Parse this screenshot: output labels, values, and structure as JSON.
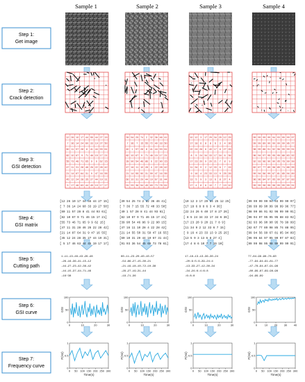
{
  "samples": [
    "Sample 1",
    "Sample 2",
    "Sample 3",
    "Sample 4"
  ],
  "steps": [
    {
      "title": "Step 1:",
      "sub": "Get image"
    },
    {
      "title": "Step 2:",
      "sub": "Crack detection"
    },
    {
      "title": "Step 3:",
      "sub": "GSI detection"
    },
    {
      "title": "Step 4:",
      "sub": "GSI matrix"
    },
    {
      "title": "Step 5:",
      "sub": "Cutting path"
    },
    {
      "title": "Step 6:",
      "sub": "GSI curve"
    },
    {
      "title": "Step 7:",
      "sub": "Frequency curve"
    }
  ],
  "colors": {
    "step_border": "#3a8fd0",
    "arrow_fill": "#b9dcf3",
    "arrow_stroke": "#6aaedf",
    "grid": "#e34b4b",
    "curve": "#2aa9e0",
    "rock_dark": "#3b3b3b",
    "rock_light": "#9a9a9a"
  },
  "gsi_grids": [
    [
      [
        "12",
        "26",
        "10",
        "17",
        "44",
        "55",
        "44",
        "27",
        "15"
      ],
      [
        "7",
        "36",
        "14",
        "24",
        "60",
        "33",
        "19",
        "27",
        "50"
      ],
      [
        "60",
        "11",
        "57",
        "28",
        "8",
        "41",
        "44",
        "93",
        "61"
      ],
      [
        "82",
        "10",
        "67",
        "9",
        "71",
        "46",
        "15",
        "17",
        "21"
      ],
      [
        "55",
        "73",
        "46",
        "71",
        "65",
        "9",
        "9",
        "62",
        "15"
      ],
      [
        "47",
        "11",
        "31",
        "28",
        "46",
        "26",
        "22",
        "28",
        "42"
      ],
      [
        "21",
        "14",
        "87",
        "64",
        "31",
        "9",
        "47",
        "16",
        "55"
      ],
      [
        "45",
        "12",
        "24",
        "28",
        "35",
        "27",
        "44",
        "19",
        "31"
      ],
      [
        "5",
        "17",
        "46",
        "63",
        "44",
        "45",
        "19",
        "17",
        "17"
      ]
    ],
    [
      [
        "39",
        "54",
        "25",
        "74",
        "2",
        "32",
        "36",
        "46",
        "41"
      ],
      [
        "7",
        "36",
        "7",
        "15",
        "55",
        "72",
        "40",
        "33",
        "50"
      ],
      [
        "40",
        "1",
        "57",
        "28",
        "8",
        "41",
        "44",
        "93",
        "61"
      ],
      [
        "82",
        "10",
        "67",
        "9",
        "71",
        "46",
        "15",
        "17",
        "21"
      ],
      [
        "39",
        "90",
        "54",
        "46",
        "86",
        "9",
        "22",
        "90",
        "15"
      ],
      [
        "47",
        "16",
        "11",
        "10",
        "28",
        "4",
        "22",
        "28",
        "42"
      ],
      [
        "21",
        "14",
        "55",
        "50",
        "31",
        "59",
        "47",
        "16",
        "55"
      ],
      [
        "60",
        "10",
        "31",
        "29",
        "44",
        "19",
        "67",
        "31",
        "44"
      ],
      [
        "91",
        "93",
        "36",
        "54",
        "45",
        "69",
        "73",
        "78",
        "61"
      ]
    ],
    [
      [
        "10",
        "12",
        "3",
        "17",
        "29",
        "34",
        "25",
        "12",
        "25"
      ],
      [
        "17",
        "18",
        "6",
        "8",
        "8",
        "6",
        "3",
        "4",
        "36"
      ],
      [
        "22",
        "24",
        "26",
        "6",
        "40",
        "17",
        "8",
        "27",
        "26"
      ],
      [
        "8",
        "5",
        "24",
        "34",
        "33",
        "17",
        "34",
        "6",
        "36"
      ],
      [
        "17",
        "23",
        "20",
        "9",
        "20",
        "21",
        "7",
        "8",
        "9"
      ],
      [
        "11",
        "34",
        "9",
        "2",
        "12",
        "33",
        "6",
        "7",
        "15"
      ],
      [
        "9",
        "16",
        "4",
        "23",
        "33",
        "13",
        "9",
        "25",
        "26"
      ],
      [
        "13",
        "5",
        "9",
        "3",
        "13",
        "6",
        "8",
        "27",
        "4"
      ],
      [
        "17",
        "4",
        "8",
        "6",
        "10",
        "7",
        "7",
        "19",
        "10"
      ]
    ],
    [
      [
        "99",
        "99",
        "99",
        "99",
        "94",
        "93",
        "99",
        "99",
        "97"
      ],
      [
        "99",
        "99",
        "89",
        "90",
        "99",
        "99",
        "99",
        "96",
        "77"
      ],
      [
        "98",
        "99",
        "86",
        "91",
        "92",
        "96",
        "99",
        "99",
        "91"
      ],
      [
        "96",
        "94",
        "97",
        "95",
        "95",
        "95",
        "88",
        "83",
        "92"
      ],
      [
        "92",
        "93",
        "96",
        "90",
        "90",
        "95",
        "78",
        "99",
        "99"
      ],
      [
        "82",
        "67",
        "77",
        "89",
        "98",
        "85",
        "74",
        "88",
        "95"
      ],
      [
        "99",
        "94",
        "56",
        "99",
        "67",
        "81",
        "85",
        "94",
        "89"
      ],
      [
        "96",
        "96",
        "84",
        "97",
        "95",
        "99",
        "97",
        "87",
        "83"
      ],
      [
        "99",
        "99",
        "98",
        "95",
        "98",
        "99",
        "99",
        "99",
        "91"
      ]
    ]
  ],
  "gsi_matrix_text": [
    [
      "[12 26 10 17 44 55 44 27 15]",
      "[ 7 36 14 24 60 33 19 27 50]",
      "[60 11 57 28  8 41 44 93 61]",
      "[82 10 67  9 71 46 15 17 21]",
      "[55 73 46 71 65  9  9 62 15]",
      "[47 11 31 28 46 26 22 28 42]",
      "[21 14 87 64 31  9 47 16 55]",
      "[45 12 24 28 35 27 44 19 31]",
      "[ 5 17 46 63 44 45 19 17 17]"
    ],
    [
      "[39 54 25 74  2 32 36 46 41]",
      "[ 7 36  7 15 55 72 40 33 50]",
      "[40  1 57 28  8 41 44 93 61]",
      "[82 10 67  9 71 46 15 17 21]",
      "[39 90 54 46 86  9 22 90 15]",
      "[47 16 11 10 28  4 22 28 42]",
      "[21 14 55 50 31 59 47 16 55]",
      "[60 10 31 29 44 19 67 31 44]",
      "[91 93 36 54 45 69 73 78 61]"
    ],
    [
      "[10 12  3 17 29 34 25 12 25]",
      "[17 18  6  8  8  6  3  4 36]",
      "[22 24 26  6 40 17  8 27 26]",
      "[ 8  5 24 34 33 17 34  6 36]",
      "[17 23 20  9 20 21  7  8  9]",
      "[11 34  9  2 12 33  6  7 15]",
      "[ 9 16  4 23 33 13  9 25 26]",
      "[13  5  9  3 13  6  8 27  4]",
      "[17  4  8  6 10  7  7 19 10]"
    ],
    [
      "[99 99 99 99 94 93 99 99 97]",
      "[99 99 89 90 99 99 99 96 77]",
      "[98 99 86 91 92 96 99 99 91]",
      "[96 94 97 95 95 95 88 83 92]",
      "[92 93 96 90 90 95 78 99 99]",
      "[82 67 77 89 98 85 74 88 95]",
      "[99 94 56 99 67 81 85 94 89]",
      "[96 96 84 97 95 99 97 87 83]",
      "[99 99 98 95 98 99 99 99 91]"
    ]
  ],
  "cutting_paths": [
    [
      "1→11→13→46→43→26→48",
      "→26→16→36→41→15→12",
      "→44→27→23→42→36→42",
      "→44→15→37→44→71→46",
      "→16↑38"
    ],
    [
      "80→11→23→20→40→10→57",
      "→54→86→27→15→30→21",
      "→21→19→18→10→72→10→38",
      "→29→27→19→31→44",
      "→19→71→36"
    ],
    [
      "17→18→13→13→36→30→24",
      "→20↓9↓5↓6→39→24↓4",
      "→13→33→27→12→30→34",
      "→34→24↓6↓4↓6↓8",
      "↓6↓8↓8"
    ],
    [
      "77→84→99→98→78→90",
      "→77→94→94→91→81→77",
      "→47→78→94→87→91→98",
      "→80→99→87→99→98→98",
      "→94→99→99"
    ]
  ],
  "gsi_curves": [
    {
      "x": [
        1,
        2,
        3,
        4,
        5,
        6,
        7,
        8,
        9,
        10,
        11,
        12,
        13,
        14,
        15,
        16,
        17,
        18,
        19,
        20,
        21,
        22,
        23,
        24,
        25,
        26,
        27,
        28,
        29,
        30,
        31,
        32,
        33,
        34,
        35,
        36,
        37,
        38,
        39,
        40
      ],
      "y": [
        55,
        30,
        75,
        20,
        60,
        35,
        80,
        40,
        25,
        65,
        20,
        45,
        70,
        30,
        50,
        85,
        35,
        20,
        60,
        40,
        75,
        25,
        55,
        30,
        65,
        45,
        20,
        70,
        35,
        50,
        30,
        60,
        25,
        80,
        40,
        55,
        30,
        45,
        70,
        35
      ],
      "xticks": [
        "0",
        "10",
        "20",
        "30"
      ],
      "yticks": [
        "0",
        "50",
        "100"
      ],
      "xlim": [
        0,
        40
      ],
      "ylim": [
        0,
        100
      ],
      "ylabel": "GSI"
    },
    {
      "x": [
        1,
        2,
        3,
        4,
        5,
        6,
        7,
        8,
        9,
        10,
        11,
        12,
        13,
        14,
        15,
        16,
        17,
        18,
        19,
        20,
        21,
        22,
        23,
        24,
        25,
        26,
        27,
        28,
        29,
        30,
        31,
        32,
        33,
        34,
        35,
        36,
        37,
        38,
        39,
        40
      ],
      "y": [
        40,
        60,
        25,
        75,
        35,
        80,
        20,
        55,
        70,
        30,
        45,
        85,
        25,
        60,
        40,
        75,
        30,
        65,
        20,
        55,
        80,
        35,
        50,
        70,
        25,
        60,
        40,
        85,
        30,
        55,
        45,
        75,
        20,
        65,
        35,
        50,
        70,
        30,
        60,
        40
      ],
      "xticks": [
        "0",
        "10",
        "20",
        "30"
      ],
      "yticks": [
        "0",
        "50",
        "100"
      ],
      "xlim": [
        0,
        40
      ],
      "ylim": [
        0,
        100
      ],
      "ylabel": "GSI"
    },
    {
      "x": [
        1,
        2,
        3,
        4,
        5,
        6,
        7,
        8,
        9,
        10,
        11,
        12,
        13,
        14,
        15,
        16,
        17,
        18,
        19,
        20,
        21,
        22,
        23,
        24,
        25,
        26,
        27,
        28,
        29,
        30,
        31,
        32,
        33,
        34,
        35,
        36,
        37,
        38,
        39,
        40
      ],
      "y": [
        20,
        35,
        15,
        25,
        40,
        18,
        30,
        22,
        12,
        28,
        35,
        15,
        24,
        30,
        18,
        26,
        14,
        32,
        20,
        25,
        16,
        28,
        22,
        12,
        30,
        18,
        26,
        20,
        34,
        15,
        22,
        28,
        18,
        24,
        14,
        30,
        20,
        26,
        16,
        22
      ],
      "xticks": [
        "0",
        "10",
        "20",
        "30"
      ],
      "yticks": [
        "0",
        "50",
        "100"
      ],
      "xlim": [
        0,
        40
      ],
      "ylim": [
        0,
        100
      ],
      "ylabel": "GSI"
    },
    {
      "x": [
        1,
        2,
        3,
        4,
        5,
        6,
        7,
        8,
        9,
        10,
        11,
        12,
        13,
        14,
        15,
        16,
        17,
        18,
        19,
        20,
        21,
        22,
        23,
        24,
        25,
        26,
        27,
        28,
        29,
        30,
        31,
        32,
        33,
        34,
        35,
        36,
        37,
        38,
        39,
        40
      ],
      "y": [
        70,
        82,
        75,
        90,
        78,
        85,
        88,
        80,
        92,
        86,
        90,
        84,
        95,
        88,
        91,
        87,
        93,
        89,
        94,
        90,
        96,
        88,
        92,
        95,
        90,
        93,
        97,
        91,
        94,
        96,
        92,
        95,
        97,
        93,
        96,
        94,
        97,
        95,
        98,
        96
      ],
      "xticks": [
        "0",
        "10",
        "20",
        "30",
        "40"
      ],
      "yticks": [
        "0",
        "50",
        "100"
      ],
      "xlim": [
        0,
        40
      ],
      "ylim": [
        0,
        100
      ],
      "ylabel": "GSI"
    }
  ],
  "freq_curves": [
    {
      "x": [
        0,
        20,
        40,
        60,
        80,
        100,
        120,
        140,
        160,
        180,
        200,
        220,
        240,
        260,
        280,
        300
      ],
      "y": [
        0.5,
        0.7,
        0.3,
        0.6,
        0.8,
        0.4,
        0.65,
        0.5,
        0.75,
        0.35,
        0.6,
        0.7,
        0.4,
        0.55,
        0.7,
        0.5
      ],
      "xticks": [
        "0",
        "50",
        "100",
        "150",
        "200",
        "250",
        "300"
      ],
      "yticks": [
        "0",
        "0.5",
        "1"
      ],
      "ylabel": "F(Hz)",
      "xlabel": "Time(s)"
    },
    {
      "x": [
        0,
        20,
        40,
        60,
        80,
        100,
        120,
        140,
        160,
        180,
        200,
        220,
        240,
        260,
        280,
        300
      ],
      "y": [
        0.4,
        0.6,
        0.2,
        0.5,
        0.7,
        0.3,
        0.55,
        0.45,
        0.65,
        0.25,
        0.5,
        0.6,
        0.35,
        0.5,
        0.6,
        0.4
      ],
      "xticks": [
        "0",
        "50",
        "100",
        "150",
        "200",
        "250",
        "300"
      ],
      "yticks": [
        "0",
        "0.5",
        "1"
      ],
      "ylabel": "F(Hz)",
      "xlabel": "Time(s)"
    },
    {
      "x": [
        0,
        20,
        40,
        60,
        80,
        100,
        120,
        140,
        160,
        180,
        200,
        220,
        240,
        260,
        280,
        300
      ],
      "y": [
        0.55,
        0.55,
        0.55,
        0.55,
        0.55,
        0.55,
        0.55,
        0.55,
        0.55,
        0.55,
        0.55,
        0.55,
        0.55,
        0.55,
        0.55,
        0.55
      ],
      "xticks": [
        "0",
        "50",
        "100",
        "150",
        "200",
        "250",
        "300"
      ],
      "yticks": [
        "0",
        "0.5",
        "1"
      ],
      "ylabel": "F(Hz)",
      "xlabel": "Time(s)"
    },
    {
      "x": [
        0,
        20,
        40,
        60,
        80,
        100,
        120,
        140,
        160,
        180,
        200,
        220,
        240,
        260,
        280,
        300
      ],
      "y": [
        0.5,
        0.52,
        0.5,
        0.3,
        0.5,
        0.5,
        0.5,
        0.5,
        0.5,
        0.5,
        0.5,
        0.5,
        0.5,
        0.5,
        0.5,
        0.5
      ],
      "xticks": [
        "0",
        "50",
        "100",
        "150",
        "200",
        "250",
        "300"
      ],
      "yticks": [
        "0",
        "0.5",
        "1"
      ],
      "ylabel": "F(Hz)",
      "xlabel": "Time(s)"
    }
  ]
}
